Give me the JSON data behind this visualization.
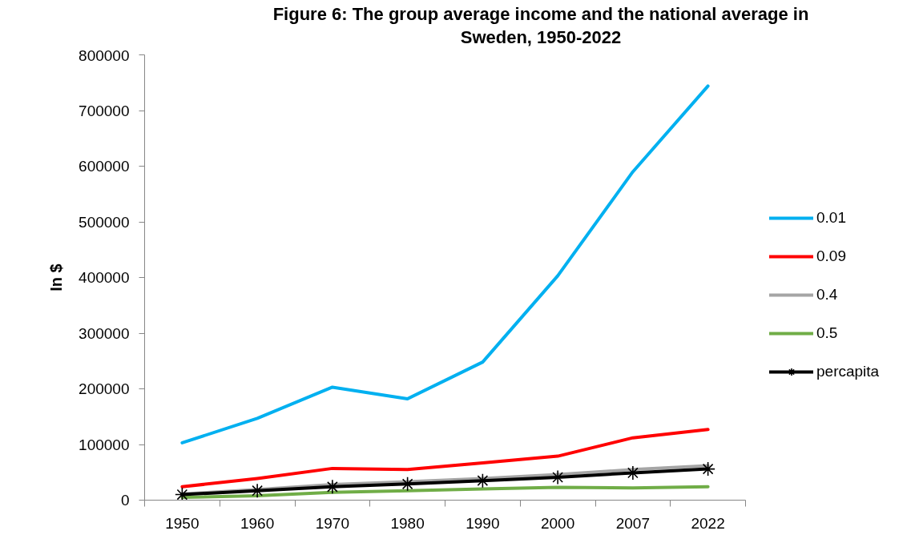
{
  "chart_data": {
    "type": "line",
    "title": "Figure 6: The group average income and the national average in Sweden, 1950-2022",
    "ylabel": "In $",
    "categories": [
      "1950",
      "1960",
      "1970",
      "1980",
      "1990",
      "2000",
      "2007",
      "2022"
    ],
    "ylim": [
      0,
      800000
    ],
    "yticks": [
      0,
      100000,
      200000,
      300000,
      400000,
      500000,
      600000,
      700000,
      800000
    ],
    "legend": "right",
    "line_style": "solid",
    "series": [
      {
        "name": "0.01",
        "color": "#00b0f0",
        "values": [
          103000,
          147000,
          203000,
          182000,
          248000,
          403000,
          590000,
          744000
        ]
      },
      {
        "name": "0.09",
        "color": "#ff0000",
        "values": [
          24000,
          39000,
          57000,
          55000,
          67000,
          79000,
          112000,
          127000
        ]
      },
      {
        "name": "0.4",
        "color": "#a5a5a5",
        "values": [
          11000,
          19000,
          28000,
          33000,
          39000,
          46000,
          55000,
          62000
        ]
      },
      {
        "name": "0.5",
        "color": "#70ad47",
        "values": [
          5000,
          8000,
          14000,
          17000,
          20000,
          23000,
          22000,
          24000
        ]
      },
      {
        "name": "percapita",
        "color": "#000000",
        "marker": "cross",
        "values": [
          10000,
          17000,
          24000,
          29000,
          35000,
          41000,
          49000,
          56000
        ]
      }
    ]
  }
}
